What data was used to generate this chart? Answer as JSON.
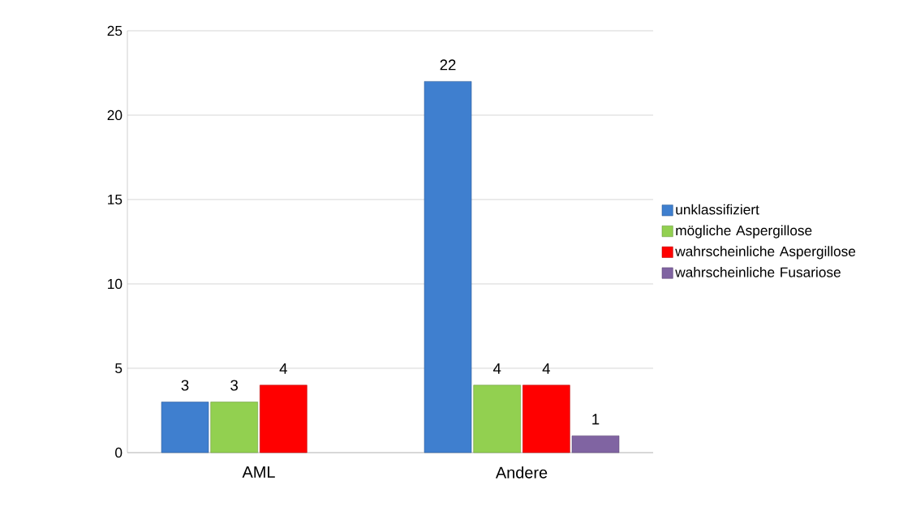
{
  "chart_data": {
    "type": "bar",
    "categories": [
      "AML",
      "Andere"
    ],
    "series": [
      {
        "name": "unklassifiziert",
        "color": "#3f7fcf",
        "values": [
          3,
          22
        ]
      },
      {
        "name": "mögliche Aspergillose",
        "color": "#92d050",
        "values": [
          3,
          4
        ]
      },
      {
        "name": "wahrscheinliche Aspergillose",
        "color": "#ff0000",
        "values": [
          4,
          4
        ]
      },
      {
        "name": "wahrscheinliche Fusariose",
        "color": "#8064a2",
        "values": [
          null,
          1
        ]
      }
    ],
    "ylim": [
      0,
      25
    ],
    "yticks": [
      0,
      5,
      10,
      15,
      20,
      25
    ],
    "grid": "y",
    "legend": "right",
    "data_labels": true
  }
}
